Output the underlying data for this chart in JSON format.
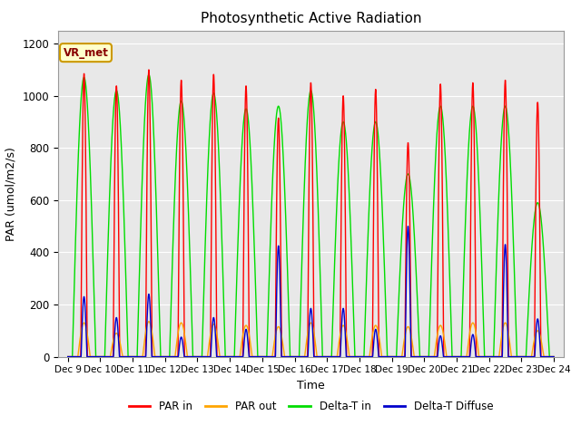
{
  "title": "Photosynthetic Active Radiation",
  "ylabel": "PAR (umol/m2/s)",
  "xlabel": "Time",
  "annotation": "VR_met",
  "ylim": [
    0,
    1250
  ],
  "xtick_labels": [
    "Dec 9",
    "Dec 10",
    "Dec 11",
    "Dec 12",
    "Dec 13",
    "Dec 14",
    "Dec 15",
    "Dec 16",
    "Dec 17",
    "Dec 18",
    "Dec 19",
    "Dec 20",
    "Dec 21",
    "Dec 22",
    "Dec 23",
    "Dec 24"
  ],
  "legend_labels": [
    "PAR in",
    "PAR out",
    "Delta-T in",
    "Delta-T Diffuse"
  ],
  "legend_colors": [
    "#ff0000",
    "#ffa500",
    "#00dd00",
    "#0000cc"
  ],
  "background_color": "#e8e8e8",
  "title_fontsize": 11,
  "days": [
    0,
    1,
    2,
    3,
    4,
    5,
    6,
    7,
    8,
    9,
    10,
    11,
    12,
    13,
    14
  ],
  "par_in_peaks": [
    1085,
    1038,
    1100,
    1060,
    1082,
    1038,
    915,
    1050,
    1000,
    1025,
    820,
    1045,
    1050,
    1060,
    975
  ],
  "par_out_peaks": [
    130,
    90,
    135,
    130,
    125,
    120,
    115,
    130,
    120,
    120,
    115,
    120,
    130,
    130,
    100
  ],
  "delta_t_in_peaks": [
    1070,
    1020,
    1080,
    980,
    1010,
    950,
    960,
    1020,
    900,
    900,
    700,
    960,
    960,
    960,
    590
  ],
  "delta_t_diff_peaks": [
    230,
    150,
    240,
    75,
    150,
    105,
    425,
    185,
    185,
    105,
    500,
    80,
    85,
    430,
    145
  ],
  "grid_yticks": [
    0,
    200,
    400,
    600,
    800,
    1000,
    1200
  ]
}
